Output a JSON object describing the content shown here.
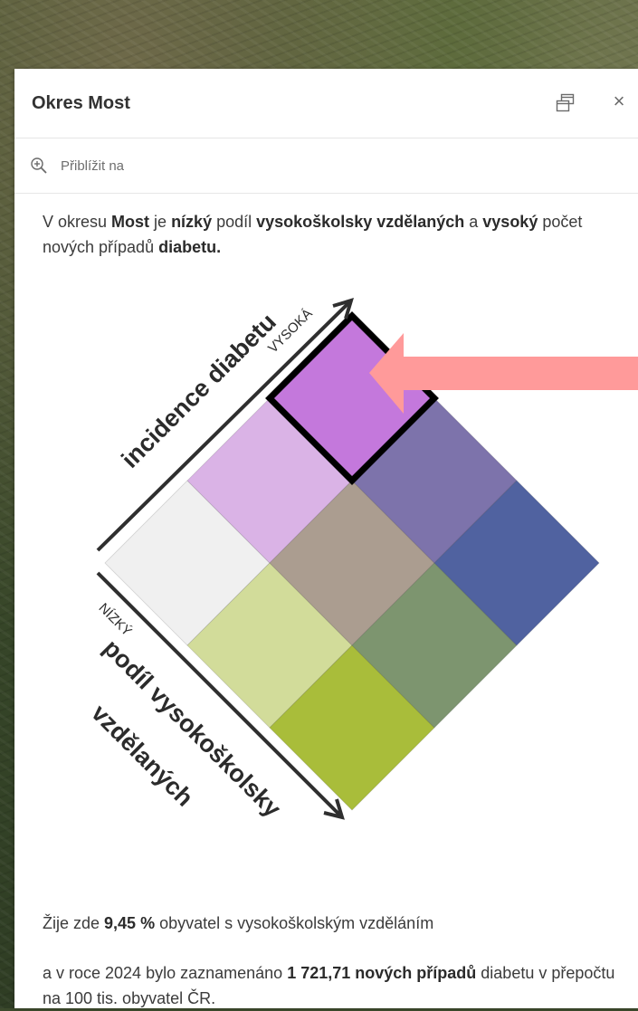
{
  "panel": {
    "title": "Okres Most",
    "zoom_label": "Přiblížit na"
  },
  "intro": {
    "p1": "V okresu ",
    "district": "Most",
    "p2": " je ",
    "edu_level": "nízký",
    "p3": " podíl ",
    "edu_term": "vysokoškolsky vzdělaných",
    "p4": " a ",
    "inc_level": "vysoký",
    "p5": " počet nových případů ",
    "disease": "diabetu."
  },
  "legend": {
    "axis_incidence_label": "incidence diabetu",
    "axis_incidence_high": "VYSOKÁ",
    "axis_education_label_line1": "podíl vysokoškolsky",
    "axis_education_label_line2": "vzdělaných",
    "axis_education_low": "NÍZKÝ",
    "highlight_color": "#ff9a9a",
    "cells": [
      {
        "row": 0,
        "col": 0,
        "color": "#f0f0f0"
      },
      {
        "row": 0,
        "col": 1,
        "color": "#d2dc9a"
      },
      {
        "row": 0,
        "col": 2,
        "color": "#a9bd3a"
      },
      {
        "row": 1,
        "col": 0,
        "color": "#dab3e6"
      },
      {
        "row": 1,
        "col": 1,
        "color": "#ab9d90"
      },
      {
        "row": 1,
        "col": 2,
        "color": "#7d956f"
      },
      {
        "row": 2,
        "col": 0,
        "color": "#c478dc"
      },
      {
        "row": 2,
        "col": 1,
        "color": "#7d73ab"
      },
      {
        "row": 2,
        "col": 2,
        "color": "#5062a0"
      }
    ],
    "selected_cell": {
      "row": 2,
      "col": 0
    }
  },
  "stats": {
    "line1_pre": "Žije zde ",
    "edu_value": "9,45 %",
    "line1_post": " obyvatel s vysokoškolským vzděláním",
    "line2_pre": "a v roce 2024 bylo zaznamenáno ",
    "cases_value": "1 721,71 nových případů",
    "line2_post": " diabetu v přepočtu na 100 tis. obyvatel ČR."
  }
}
